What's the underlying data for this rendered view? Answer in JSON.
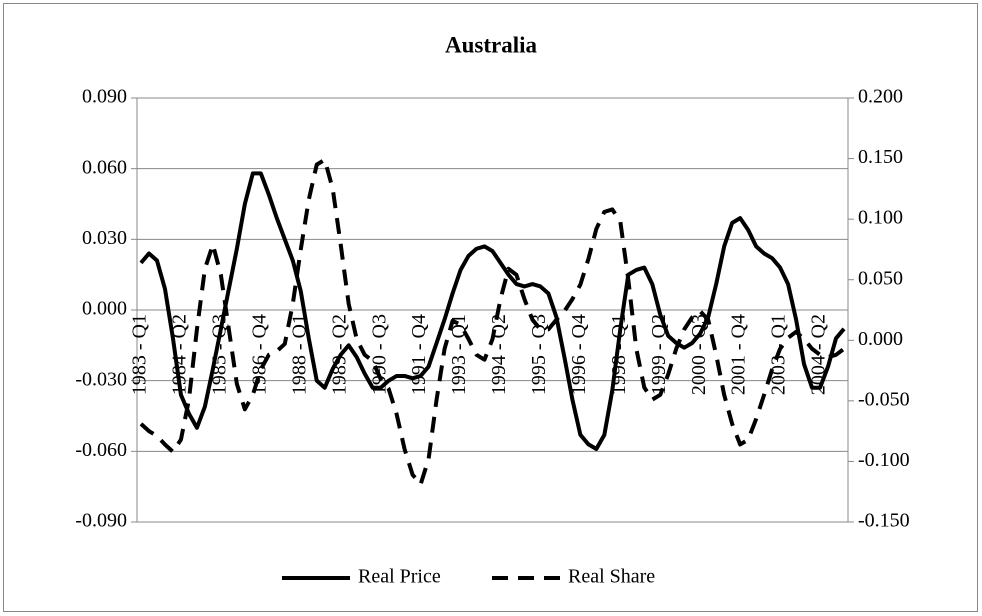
{
  "chart_data": {
    "type": "line",
    "title": "Australia",
    "legend": "bottom",
    "categories": [
      "1983 - Q1",
      null,
      null,
      null,
      null,
      "1984 - Q2",
      null,
      null,
      null,
      null,
      "1985 - Q3",
      null,
      null,
      null,
      null,
      "1986 - Q4",
      null,
      null,
      null,
      null,
      "1988 - Q1",
      null,
      null,
      null,
      null,
      "1989 - Q2",
      null,
      null,
      null,
      null,
      "1990 - Q3",
      null,
      null,
      null,
      null,
      "1991 - Q4",
      null,
      null,
      null,
      null,
      "1993 - Q1",
      null,
      null,
      null,
      null,
      "1994 - Q2",
      null,
      null,
      null,
      null,
      "1995 - Q3",
      null,
      null,
      null,
      null,
      "1996 - Q4",
      null,
      null,
      null,
      null,
      "1998 - Q1",
      null,
      null,
      null,
      null,
      "1999 - Q2",
      null,
      null,
      null,
      null,
      "2000 - Q3",
      null,
      null,
      null,
      null,
      "2001 - Q4",
      null,
      null,
      null,
      null,
      "2003 - Q1",
      null,
      null,
      null,
      null,
      "2004 - Q2",
      null,
      null,
      null
    ],
    "ylim": [
      -0.09,
      0.09
    ],
    "yticks": [
      {
        "value": -0.09,
        "label": "-0.090"
      },
      {
        "value": -0.06,
        "label": "-0.060"
      },
      {
        "value": -0.03,
        "label": "-0.030"
      },
      {
        "value": 0,
        "label": "0.000"
      },
      {
        "value": 0.03,
        "label": "0.030"
      },
      {
        "value": 0.06,
        "label": "0.060"
      },
      {
        "value": 0.09,
        "label": "0.090"
      }
    ],
    "y2lim": [
      -0.15,
      0.2
    ],
    "y2ticks": [
      {
        "value": -0.15,
        "label": "-0.150"
      },
      {
        "value": -0.1,
        "label": "-0.100"
      },
      {
        "value": -0.05,
        "label": "-0.050"
      },
      {
        "value": 0,
        "label": "0.000"
      },
      {
        "value": 0.05,
        "label": "0.050"
      },
      {
        "value": 0.1,
        "label": "0.100"
      },
      {
        "value": 0.15,
        "label": "0.150"
      },
      {
        "value": 0.2,
        "label": "0.200"
      }
    ],
    "grid": true,
    "series": [
      {
        "name": "Real Price",
        "color": "#000000",
        "line_style": "solid",
        "axis": "y",
        "values": [
          0.02,
          0.024,
          0.021,
          0.009,
          -0.012,
          -0.036,
          -0.044,
          -0.05,
          -0.041,
          -0.025,
          -0.008,
          0.009,
          0.026,
          0.045,
          0.058,
          0.058,
          0.049,
          0.039,
          0.03,
          0.021,
          0.008,
          -0.012,
          -0.03,
          -0.033,
          -0.025,
          -0.019,
          -0.015,
          -0.02,
          -0.027,
          -0.033,
          -0.033,
          -0.03,
          -0.028,
          -0.028,
          -0.029,
          -0.028,
          -0.024,
          -0.014,
          -0.004,
          0.007,
          0.017,
          0.023,
          0.026,
          0.027,
          0.025,
          0.02,
          0.015,
          0.011,
          0.01,
          0.011,
          0.01,
          0.007,
          -0.003,
          -0.02,
          -0.038,
          -0.053,
          -0.057,
          -0.059,
          -0.053,
          -0.034,
          -0.008,
          0.015,
          0.017,
          0.018,
          0.011,
          -0.002,
          -0.011,
          -0.014,
          -0.016,
          -0.014,
          -0.01,
          -0.003,
          0.011,
          0.027,
          0.037,
          0.039,
          0.034,
          0.027,
          0.024,
          0.022,
          0.018,
          0.011,
          -0.004,
          -0.023,
          -0.033,
          -0.033,
          -0.024,
          -0.012,
          -0.008
        ]
      },
      {
        "name": "Real Share",
        "color": "#000000",
        "line_style": "dashed",
        "axis": "y2",
        "values": [
          -0.069,
          -0.075,
          -0.079,
          -0.086,
          -0.092,
          -0.082,
          -0.049,
          0.009,
          0.059,
          0.079,
          0.054,
          0.009,
          -0.036,
          -0.057,
          -0.045,
          -0.024,
          -0.012,
          -0.009,
          -0.003,
          0.03,
          0.075,
          0.116,
          0.145,
          0.149,
          0.125,
          0.079,
          0.03,
          0.001,
          -0.012,
          -0.017,
          -0.032,
          -0.04,
          -0.061,
          -0.09,
          -0.111,
          -0.119,
          -0.098,
          -0.049,
          -0.007,
          0.016,
          0.013,
          0.001,
          -0.012,
          -0.016,
          0.001,
          0.034,
          0.059,
          0.054,
          0.034,
          0.017,
          0.009,
          0.009,
          0.017,
          0.024,
          0.034,
          0.046,
          0.067,
          0.092,
          0.106,
          0.108,
          0.098,
          0.05,
          -0.007,
          -0.039,
          -0.049,
          -0.045,
          -0.028,
          -0.007,
          0.009,
          0.019,
          0.024,
          0.017,
          -0.012,
          -0.045,
          -0.069,
          -0.086,
          -0.082,
          -0.065,
          -0.045,
          -0.024,
          -0.007,
          0.002,
          0.007,
          0.001,
          -0.007,
          -0.012,
          -0.014,
          -0.012,
          -0.007
        ]
      }
    ]
  }
}
